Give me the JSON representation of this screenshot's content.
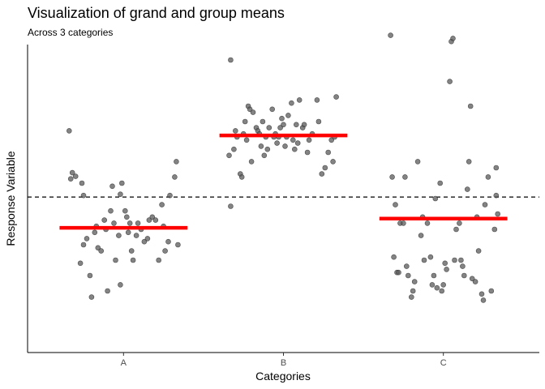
{
  "chart_data": {
    "type": "scatter",
    "title": "Visualization of grand and group means",
    "subtitle": "Across 3 categories",
    "xlabel": "Categories",
    "ylabel": "Response Variable",
    "categories": [
      "A",
      "B",
      "C"
    ],
    "ylim": [
      0,
      100
    ],
    "show_y_ticks": false,
    "grid": false,
    "grand_mean": 50.5,
    "point_color": "#595959",
    "mean_color": "#ff0000",
    "points": {
      "A": [
        [
          -0.34,
          72
        ],
        [
          -0.33,
          56.4
        ],
        [
          -0.32,
          58.4
        ],
        [
          -0.3,
          57.2
        ],
        [
          -0.27,
          29
        ],
        [
          -0.26,
          55
        ],
        [
          -0.25,
          51
        ],
        [
          -0.25,
          35
        ],
        [
          -0.23,
          37
        ],
        [
          -0.21,
          25
        ],
        [
          -0.2,
          18
        ],
        [
          -0.18,
          39
        ],
        [
          -0.17,
          41
        ],
        [
          -0.16,
          34
        ],
        [
          -0.14,
          33
        ],
        [
          -0.12,
          43
        ],
        [
          -0.11,
          40
        ],
        [
          -0.1,
          20
        ],
        [
          -0.08,
          46
        ],
        [
          -0.07,
          54
        ],
        [
          -0.06,
          42
        ],
        [
          -0.05,
          30
        ],
        [
          -0.03,
          38
        ],
        [
          -0.02,
          22
        ],
        [
          -0.02,
          51.4
        ],
        [
          -0.01,
          55
        ],
        [
          0.01,
          46
        ],
        [
          0.02,
          44
        ],
        [
          0.03,
          39
        ],
        [
          0.04,
          42
        ],
        [
          0.05,
          33
        ],
        [
          0.06,
          30
        ],
        [
          0.08,
          38
        ],
        [
          0.09,
          42
        ],
        [
          0.11,
          40
        ],
        [
          0.13,
          36
        ],
        [
          0.15,
          37
        ],
        [
          0.16,
          43
        ],
        [
          0.18,
          44
        ],
        [
          0.2,
          43
        ],
        [
          0.22,
          30
        ],
        [
          0.24,
          48
        ],
        [
          0.25,
          41
        ],
        [
          0.26,
          33
        ],
        [
          0.28,
          36
        ],
        [
          0.29,
          51
        ],
        [
          0.32,
          57
        ],
        [
          0.33,
          62
        ],
        [
          0.34,
          35
        ]
      ],
      "B": [
        [
          -0.33,
          47.5
        ],
        [
          -0.34,
          64
        ],
        [
          -0.33,
          95
        ],
        [
          -0.31,
          66
        ],
        [
          -0.3,
          72
        ],
        [
          -0.29,
          70
        ],
        [
          -0.27,
          58
        ],
        [
          -0.26,
          57
        ],
        [
          -0.25,
          71
        ],
        [
          -0.24,
          75
        ],
        [
          -0.23,
          69
        ],
        [
          -0.22,
          80
        ],
        [
          -0.21,
          79
        ],
        [
          -0.2,
          62
        ],
        [
          -0.19,
          78
        ],
        [
          -0.17,
          73
        ],
        [
          -0.16,
          72
        ],
        [
          -0.15,
          71
        ],
        [
          -0.14,
          67
        ],
        [
          -0.13,
          75
        ],
        [
          -0.12,
          64
        ],
        [
          -0.11,
          70
        ],
        [
          -0.1,
          66
        ],
        [
          -0.09,
          73
        ],
        [
          -0.07,
          79
        ],
        [
          -0.06,
          70
        ],
        [
          -0.05,
          71
        ],
        [
          -0.04,
          68
        ],
        [
          -0.03,
          70
        ],
        [
          -0.02,
          73
        ],
        [
          -0.01,
          76
        ],
        [
          0.0,
          74
        ],
        [
          0.01,
          67
        ],
        [
          0.02,
          70
        ],
        [
          0.03,
          77
        ],
        [
          0.05,
          81
        ],
        [
          0.06,
          69
        ],
        [
          0.07,
          66
        ],
        [
          0.08,
          74
        ],
        [
          0.09,
          68
        ],
        [
          0.1,
          82
        ],
        [
          0.12,
          73
        ],
        [
          0.13,
          74
        ],
        [
          0.15,
          65
        ],
        [
          0.16,
          69
        ],
        [
          0.18,
          71
        ],
        [
          0.21,
          82
        ],
        [
          0.22,
          75
        ],
        [
          0.24,
          58
        ],
        [
          0.26,
          60
        ],
        [
          0.28,
          65
        ],
        [
          0.3,
          69
        ],
        [
          0.31,
          62
        ],
        [
          0.32,
          70
        ],
        [
          0.33,
          83
        ]
      ],
      "C": [
        [
          -0.33,
          103
        ],
        [
          -0.32,
          57
        ],
        [
          -0.31,
          31
        ],
        [
          -0.3,
          48
        ],
        [
          -0.29,
          26
        ],
        [
          -0.28,
          26
        ],
        [
          -0.27,
          42
        ],
        [
          -0.25,
          42
        ],
        [
          -0.24,
          57
        ],
        [
          -0.23,
          28
        ],
        [
          -0.22,
          25
        ],
        [
          -0.2,
          18
        ],
        [
          -0.19,
          20
        ],
        [
          -0.18,
          23
        ],
        [
          -0.16,
          62
        ],
        [
          -0.14,
          38
        ],
        [
          -0.13,
          44
        ],
        [
          -0.12,
          30
        ],
        [
          -0.1,
          42
        ],
        [
          -0.08,
          31
        ],
        [
          -0.07,
          22
        ],
        [
          -0.06,
          25
        ],
        [
          -0.05,
          50
        ],
        [
          -0.04,
          21
        ],
        [
          -0.02,
          55
        ],
        [
          -0.01,
          20
        ],
        [
          0.0,
          22
        ],
        [
          0.01,
          29
        ],
        [
          0.02,
          27
        ],
        [
          0.04,
          88
        ],
        [
          0.05,
          101
        ],
        [
          0.06,
          102
        ],
        [
          0.07,
          30
        ],
        [
          0.08,
          40
        ],
        [
          0.1,
          42
        ],
        [
          0.11,
          30
        ],
        [
          0.12,
          28
        ],
        [
          0.13,
          25
        ],
        [
          0.15,
          53
        ],
        [
          0.16,
          62
        ],
        [
          0.17,
          80
        ],
        [
          0.18,
          24
        ],
        [
          0.2,
          23
        ],
        [
          0.21,
          44
        ],
        [
          0.22,
          33
        ],
        [
          0.24,
          19
        ],
        [
          0.25,
          17
        ],
        [
          0.26,
          48
        ],
        [
          0.28,
          57
        ],
        [
          0.3,
          20
        ],
        [
          0.32,
          40
        ],
        [
          0.33,
          51
        ],
        [
          0.33,
          60
        ],
        [
          0.34,
          45
        ]
      ]
    },
    "group_means": [
      {
        "category": "A",
        "value": 40.5
      },
      {
        "category": "B",
        "value": 70.5
      },
      {
        "category": "C",
        "value": 43.5
      }
    ]
  }
}
